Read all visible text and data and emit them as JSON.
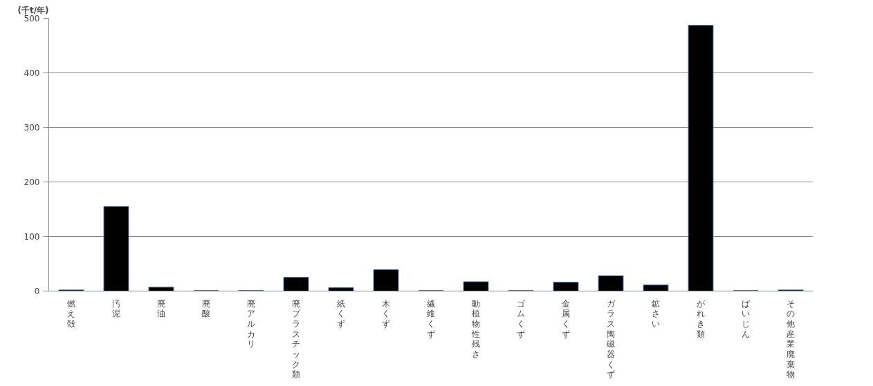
{
  "chart_data": {
    "type": "bar",
    "ylabel": "(千t/年)",
    "categories": [
      "燃え殻",
      "汚泥",
      "廃油",
      "廃酸",
      "廃アルカリ",
      "廃プラスチック類",
      "紙くず",
      "木くず",
      "繊維くず",
      "動植物性残さ",
      "ゴムくず",
      "金属くず",
      "ガラス陶磁器くず",
      "鉱さい",
      "がれき類",
      "ばいじん",
      "その他産業廃棄物"
    ],
    "values": [
      2,
      155,
      7,
      1,
      1,
      25,
      6,
      39,
      1,
      17,
      1,
      16,
      28,
      11,
      487,
      1,
      2
    ],
    "color": "#000000",
    "ylim": [
      0,
      500
    ],
    "yticks": [
      0,
      100,
      200,
      300,
      400,
      500
    ],
    "grid": "y"
  }
}
